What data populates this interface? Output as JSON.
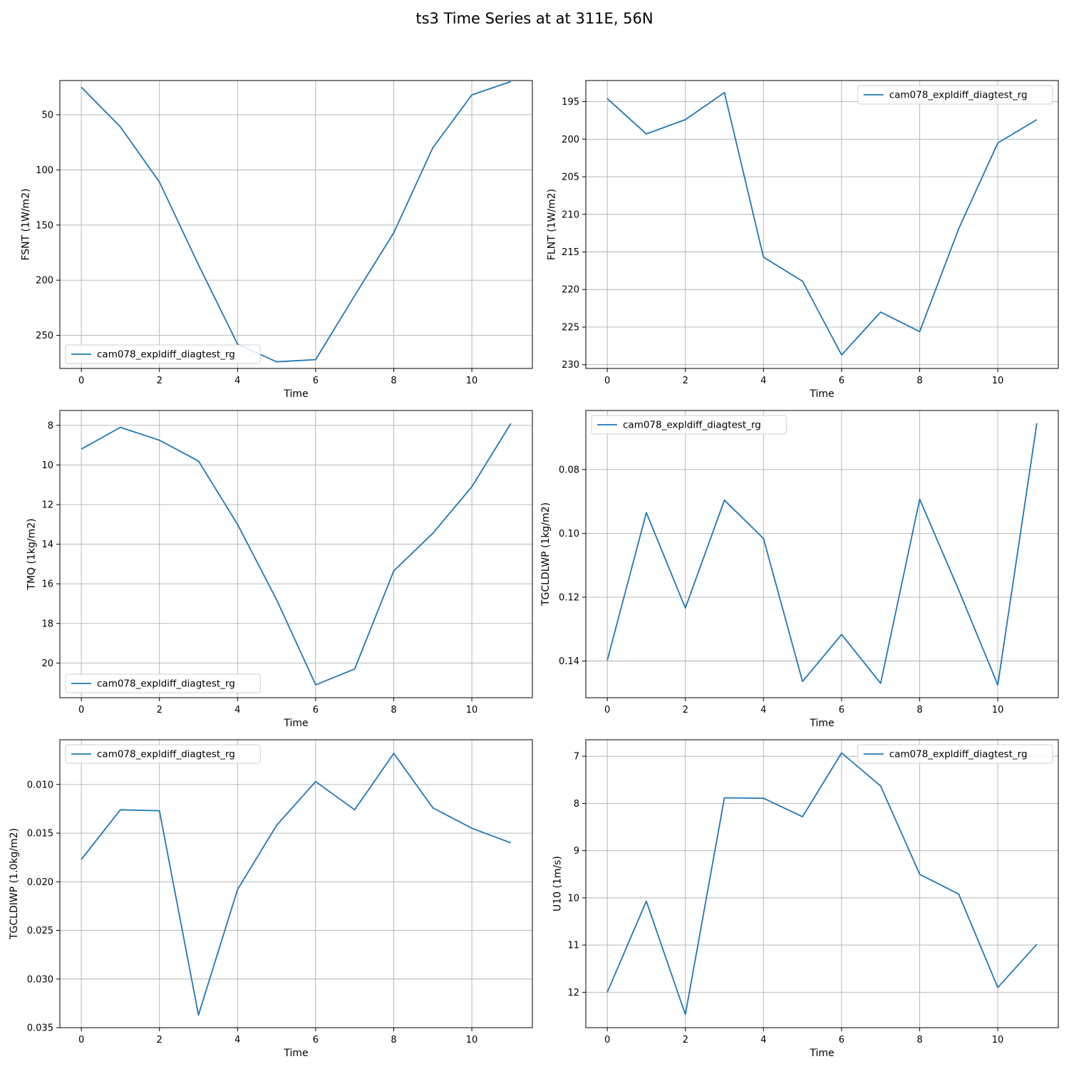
{
  "title": "ts3 Time Series at at 311E, 56N",
  "colors": {
    "series": "#1f77b4",
    "grid": "#b0b0b0",
    "axes": "#000000"
  },
  "chart_data": [
    {
      "type": "line",
      "xlabel": "Time",
      "ylabel": "FSNT (1W/m2)",
      "y_inverted": true,
      "grid": true,
      "legend_loc": "lower-left",
      "xlim": [
        -0.55,
        11.55
      ],
      "ylim": [
        19,
        280
      ],
      "xticks": [
        0,
        2,
        4,
        6,
        8,
        10
      ],
      "yticks": [
        50,
        100,
        150,
        200,
        250
      ],
      "series": [
        {
          "name": "cam078_expldiff_diagtest_rg",
          "x": [
            0,
            1,
            2,
            3,
            4,
            5,
            6,
            7,
            8,
            9,
            10,
            11
          ],
          "y": [
            25,
            61,
            111,
            186,
            258,
            274,
            272,
            214,
            157,
            80,
            32,
            20
          ]
        }
      ]
    },
    {
      "type": "line",
      "xlabel": "Time",
      "ylabel": "FLNT (1W/m2)",
      "y_inverted": true,
      "grid": true,
      "legend_loc": "upper-right",
      "xlim": [
        -0.55,
        11.55
      ],
      "ylim": [
        192.2,
        230.5
      ],
      "xticks": [
        0,
        2,
        4,
        6,
        8,
        10
      ],
      "yticks": [
        195,
        200,
        205,
        210,
        215,
        220,
        225,
        230
      ],
      "series": [
        {
          "name": "cam078_expldiff_diagtest_rg",
          "x": [
            0,
            1,
            2,
            3,
            4,
            5,
            6,
            7,
            8,
            9,
            10,
            11
          ],
          "y": [
            194.6,
            199.3,
            197.4,
            193.8,
            215.7,
            218.9,
            228.7,
            223.0,
            225.6,
            211.9,
            200.5,
            197.4
          ]
        }
      ]
    },
    {
      "type": "line",
      "xlabel": "Time",
      "ylabel": "TMQ (1kg/m2)",
      "y_inverted": true,
      "grid": true,
      "legend_loc": "lower-left",
      "xlim": [
        -0.55,
        11.55
      ],
      "ylim": [
        7.25,
        21.75
      ],
      "xticks": [
        0,
        2,
        4,
        6,
        8,
        10
      ],
      "yticks": [
        8,
        10,
        12,
        14,
        16,
        18,
        20
      ],
      "series": [
        {
          "name": "cam078_expldiff_diagtest_rg",
          "x": [
            0,
            1,
            2,
            3,
            4,
            5,
            6,
            7,
            8,
            9,
            10,
            11
          ],
          "y": [
            9.2,
            8.1,
            8.75,
            9.8,
            13.0,
            16.8,
            21.1,
            20.3,
            15.35,
            13.45,
            11.1,
            7.9
          ]
        }
      ]
    },
    {
      "type": "line",
      "xlabel": "Time",
      "ylabel": "TGCLDLWP (1kg/m2)",
      "y_inverted": true,
      "grid": true,
      "legend_loc": "upper-left",
      "xlim": [
        -0.55,
        11.55
      ],
      "ylim": [
        0.0615,
        0.1515
      ],
      "xticks": [
        0,
        2,
        4,
        6,
        8,
        10
      ],
      "yticks": [
        0.08,
        0.1,
        0.12,
        0.14
      ],
      "ytick_labels": [
        "0.08",
        "0.10",
        "0.12",
        "0.14"
      ],
      "series": [
        {
          "name": "cam078_expldiff_diagtest_rg",
          "x": [
            0,
            1,
            2,
            3,
            4,
            5,
            6,
            7,
            8,
            9,
            10,
            11
          ],
          "y": [
            0.1398,
            0.0935,
            0.1234,
            0.0896,
            0.1016,
            0.1464,
            0.1317,
            0.147,
            0.0893,
            0.1178,
            0.1475,
            0.0655
          ]
        }
      ]
    },
    {
      "type": "line",
      "xlabel": "Time",
      "ylabel": "TGCLDIWP (1.0kg/m2)",
      "y_inverted": true,
      "grid": true,
      "legend_loc": "upper-left",
      "xlim": [
        -0.55,
        11.55
      ],
      "ylim": [
        0.0054,
        0.035
      ],
      "xticks": [
        0,
        2,
        4,
        6,
        8,
        10
      ],
      "yticks": [
        0.01,
        0.015,
        0.02,
        0.025,
        0.03,
        0.035
      ],
      "ytick_labels": [
        "0.010",
        "0.015",
        "0.020",
        "0.025",
        "0.030",
        "0.035"
      ],
      "series": [
        {
          "name": "cam078_expldiff_diagtest_rg",
          "x": [
            0,
            1,
            2,
            3,
            4,
            5,
            6,
            7,
            8,
            9,
            10,
            11
          ],
          "y": [
            0.0177,
            0.0126,
            0.0127,
            0.0337,
            0.0208,
            0.0142,
            0.0097,
            0.0126,
            0.0068,
            0.0124,
            0.0145,
            0.016
          ]
        }
      ]
    },
    {
      "type": "line",
      "xlabel": "Time",
      "ylabel": "U10 (1m/s)",
      "y_inverted": true,
      "grid": true,
      "legend_loc": "upper-right",
      "xlim": [
        -0.55,
        11.55
      ],
      "ylim": [
        6.65,
        12.75
      ],
      "xticks": [
        0,
        2,
        4,
        6,
        8,
        10
      ],
      "yticks": [
        7,
        8,
        9,
        10,
        11,
        12
      ],
      "series": [
        {
          "name": "cam078_expldiff_diagtest_rg",
          "x": [
            0,
            1,
            2,
            3,
            4,
            5,
            6,
            7,
            8,
            9,
            10,
            11
          ],
          "y": [
            12.0,
            10.07,
            12.47,
            7.88,
            7.89,
            8.28,
            6.93,
            7.63,
            9.5,
            9.92,
            11.9,
            10.98
          ]
        }
      ]
    }
  ]
}
